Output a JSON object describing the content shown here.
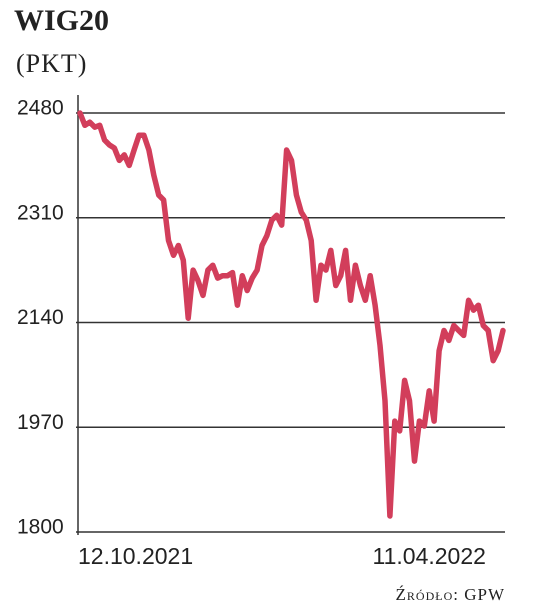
{
  "chart_data": {
    "type": "line",
    "title": "WIG20",
    "subtitle": "(PKT)",
    "source": "Źródło: GPW",
    "categories": [
      "12.10.2021",
      null,
      null,
      null,
      null,
      null,
      null,
      null,
      null,
      null,
      null,
      null,
      null,
      null,
      null,
      null,
      null,
      null,
      null,
      null,
      null,
      null,
      null,
      null,
      null,
      null,
      null,
      null,
      null,
      null,
      null,
      null,
      null,
      null,
      null,
      null,
      null,
      null,
      null,
      null,
      null,
      null,
      null,
      null,
      null,
      null,
      null,
      null,
      null,
      null,
      null,
      null,
      null,
      null,
      null,
      null,
      null,
      null,
      null,
      null,
      null,
      null,
      null,
      null,
      null,
      null,
      null,
      null,
      null,
      null,
      null,
      "11.04.2022",
      null,
      null,
      null,
      null,
      null,
      null,
      null,
      null,
      null,
      null,
      null,
      null,
      null,
      null,
      null
    ],
    "values": [
      2480,
      2460,
      2465,
      2457,
      2460,
      2436,
      2428,
      2423,
      2403,
      2412,
      2395,
      2420,
      2444,
      2444,
      2420,
      2379,
      2347,
      2339,
      2273,
      2249,
      2265,
      2241,
      2147,
      2225,
      2208,
      2184,
      2225,
      2233,
      2212,
      2216,
      2216,
      2221,
      2168,
      2216,
      2192,
      2212,
      2225,
      2265,
      2281,
      2306,
      2314,
      2298,
      2420,
      2403,
      2347,
      2319,
      2306,
      2273,
      2176,
      2233,
      2225,
      2257,
      2200,
      2216,
      2257,
      2176,
      2233,
      2200,
      2176,
      2216,
      2168,
      2103,
      2013,
      1826,
      1980,
      1964,
      2046,
      2013,
      1915,
      1980,
      1972,
      2029,
      1980,
      2094,
      2127,
      2111,
      2135,
      2127,
      2119,
      2176,
      2160,
      2168,
      2135,
      2127,
      2078,
      2094,
      2127
    ],
    "color": "#d23e5b",
    "ylim": [
      1800,
      2480
    ],
    "yticks": [
      1800,
      1970,
      2140,
      2310,
      2480
    ],
    "grid": true
  }
}
